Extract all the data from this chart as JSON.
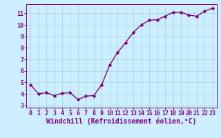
{
  "x": [
    0,
    1,
    2,
    3,
    4,
    5,
    6,
    7,
    8,
    9,
    10,
    11,
    12,
    13,
    14,
    15,
    16,
    17,
    18,
    19,
    20,
    21,
    22,
    23
  ],
  "y": [
    4.8,
    4.0,
    4.1,
    3.85,
    4.05,
    4.1,
    3.5,
    3.8,
    3.85,
    4.8,
    6.5,
    7.6,
    8.45,
    9.35,
    10.0,
    10.4,
    10.45,
    10.75,
    11.1,
    11.1,
    10.85,
    10.75,
    11.2,
    11.45
  ],
  "line_color": "#800080",
  "marker_color": "#800080",
  "bg_color": "#cceeff",
  "grid_color": "#aadddd",
  "xlabel": "Windchill (Refroidissement éolien,°C)",
  "xlim": [
    -0.5,
    23.5
  ],
  "ylim": [
    2.8,
    11.8
  ],
  "yticks": [
    3,
    4,
    5,
    6,
    7,
    8,
    9,
    10,
    11
  ],
  "xticks": [
    0,
    1,
    2,
    3,
    4,
    5,
    6,
    7,
    8,
    9,
    10,
    11,
    12,
    13,
    14,
    15,
    16,
    17,
    18,
    19,
    20,
    21,
    22,
    23
  ],
  "xlabel_fontsize": 7.0,
  "tick_fontsize": 6.0,
  "axis_color": "#800080",
  "line_width": 1.0,
  "marker_size": 2.5
}
